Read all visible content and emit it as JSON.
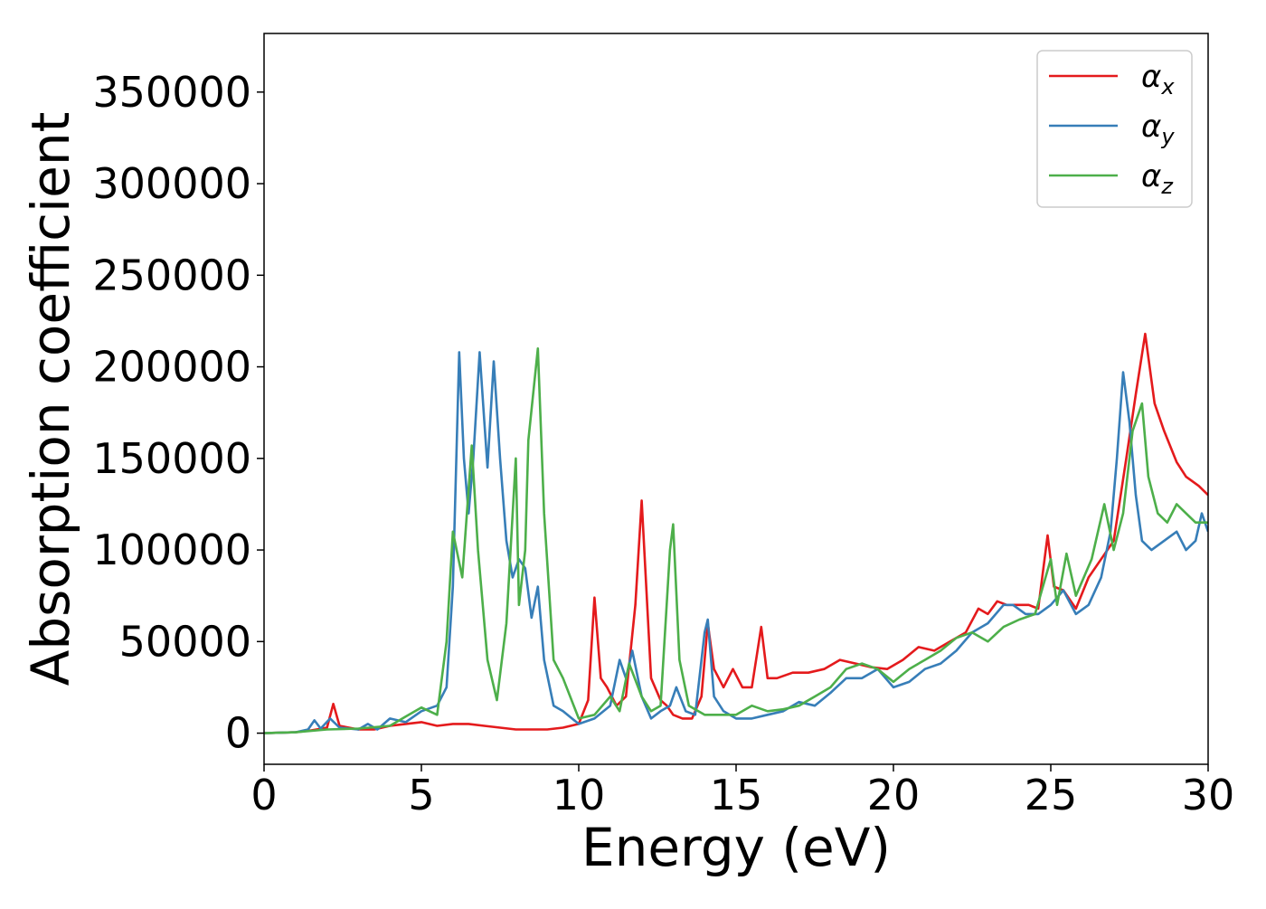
{
  "chart_data": {
    "type": "line",
    "title": "",
    "xlabel": "Energy (eV)",
    "ylabel": "Absorption coefficient",
    "xlim": [
      0,
      30
    ],
    "ylim": [
      -17000,
      382000
    ],
    "xticks": [
      0,
      5,
      10,
      15,
      20,
      25,
      30
    ],
    "xtick_labels": [
      "0",
      "5",
      "10",
      "15",
      "20",
      "25",
      "30"
    ],
    "yticks": [
      0,
      50000,
      100000,
      150000,
      200000,
      250000,
      300000,
      350000
    ],
    "ytick_labels": [
      "0",
      "50000",
      "100000",
      "150000",
      "200000",
      "250000",
      "300000",
      "350000"
    ],
    "grid": false,
    "legend_position": "top-right",
    "series": [
      {
        "name": "α_x",
        "label_main": "α",
        "label_sub": "x",
        "color": "#e41a1c",
        "x": [
          0,
          1,
          1.5,
          2.0,
          2.2,
          2.4,
          3.0,
          3.5,
          4.0,
          4.5,
          5.0,
          5.5,
          6.0,
          6.5,
          7.0,
          7.5,
          8.0,
          8.5,
          9.0,
          9.5,
          10.0,
          10.3,
          10.5,
          10.7,
          10.9,
          11.2,
          11.5,
          11.8,
          12.0,
          12.3,
          12.6,
          12.8,
          13.0,
          13.3,
          13.6,
          13.9,
          14.1,
          14.3,
          14.6,
          14.9,
          15.2,
          15.5,
          15.8,
          16.0,
          16.3,
          16.8,
          17.3,
          17.8,
          18.3,
          18.8,
          19.3,
          19.8,
          20.3,
          20.8,
          21.3,
          21.8,
          22.3,
          22.7,
          23.0,
          23.3,
          23.6,
          24.0,
          24.3,
          24.6,
          24.9,
          25.1,
          25.4,
          25.8,
          26.2,
          26.6,
          27.0,
          27.4,
          27.7,
          28.0,
          28.3,
          28.6,
          29.0,
          29.3,
          29.7,
          30.0
        ],
        "y": [
          0,
          500,
          1500,
          3000,
          16000,
          4000,
          2000,
          2000,
          4000,
          5000,
          6000,
          4000,
          5000,
          5000,
          4000,
          3000,
          2000,
          2000,
          2000,
          3000,
          5000,
          18000,
          74000,
          30000,
          25000,
          15000,
          20000,
          70000,
          127000,
          30000,
          18000,
          15000,
          10000,
          8000,
          8000,
          20000,
          60000,
          35000,
          25000,
          35000,
          25000,
          25000,
          58000,
          30000,
          30000,
          33000,
          33000,
          35000,
          40000,
          38000,
          36000,
          35000,
          40000,
          47000,
          45000,
          50000,
          55000,
          68000,
          65000,
          72000,
          70000,
          70000,
          70000,
          68000,
          108000,
          80000,
          78000,
          68000,
          85000,
          95000,
          105000,
          150000,
          185000,
          218000,
          180000,
          165000,
          148000,
          140000,
          135000,
          130000
        ]
      },
      {
        "name": "α_y",
        "label_main": "α",
        "label_sub": "y",
        "color": "#377eb8",
        "x": [
          0,
          1,
          1.4,
          1.6,
          1.8,
          2.1,
          2.4,
          3.0,
          3.3,
          3.6,
          4.0,
          4.5,
          5.0,
          5.5,
          5.8,
          6.0,
          6.2,
          6.35,
          6.5,
          6.65,
          6.85,
          7.0,
          7.1,
          7.3,
          7.5,
          7.7,
          7.9,
          8.1,
          8.3,
          8.5,
          8.7,
          8.9,
          9.2,
          9.5,
          10.0,
          10.5,
          11.0,
          11.3,
          11.5,
          11.7,
          12.0,
          12.3,
          12.6,
          12.9,
          13.1,
          13.4,
          13.7,
          14.0,
          14.1,
          14.3,
          14.6,
          15.0,
          15.5,
          16.0,
          16.5,
          17.0,
          17.5,
          18.0,
          18.5,
          19.0,
          19.5,
          20.0,
          20.5,
          21.0,
          21.5,
          22.0,
          22.5,
          23.0,
          23.5,
          23.8,
          24.2,
          24.6,
          25.0,
          25.4,
          25.8,
          26.2,
          26.6,
          26.9,
          27.1,
          27.3,
          27.5,
          27.7,
          27.9,
          28.2,
          28.6,
          29.0,
          29.3,
          29.6,
          29.8,
          30.0
        ],
        "y": [
          0,
          500,
          2000,
          7000,
          2500,
          8000,
          3000,
          2000,
          5000,
          2000,
          8000,
          6000,
          12000,
          15000,
          25000,
          80000,
          208000,
          150000,
          120000,
          150000,
          208000,
          170000,
          145000,
          203000,
          150000,
          105000,
          85000,
          95000,
          90000,
          63000,
          80000,
          40000,
          15000,
          12000,
          5000,
          8000,
          15000,
          40000,
          30000,
          45000,
          20000,
          8000,
          12000,
          15000,
          25000,
          12000,
          10000,
          55000,
          62000,
          20000,
          12000,
          8000,
          8000,
          10000,
          12000,
          17000,
          15000,
          22000,
          30000,
          30000,
          35000,
          25000,
          28000,
          35000,
          38000,
          45000,
          55000,
          60000,
          70000,
          70000,
          65000,
          65000,
          70000,
          78000,
          65000,
          70000,
          85000,
          110000,
          150000,
          197000,
          170000,
          130000,
          105000,
          100000,
          105000,
          110000,
          100000,
          105000,
          120000,
          110000
        ]
      },
      {
        "name": "α_z",
        "label_main": "α",
        "label_sub": "z",
        "color": "#4daf4a",
        "x": [
          0,
          1,
          2,
          3,
          4,
          4.5,
          5.0,
          5.5,
          5.8,
          6.0,
          6.3,
          6.6,
          6.8,
          7.1,
          7.4,
          7.7,
          8.0,
          8.1,
          8.3,
          8.4,
          8.7,
          8.9,
          9.2,
          9.5,
          10.0,
          10.5,
          11.0,
          11.3,
          11.6,
          12.0,
          12.3,
          12.6,
          12.9,
          13.0,
          13.2,
          13.5,
          14.0,
          14.5,
          15.0,
          15.5,
          16.0,
          16.5,
          17.0,
          17.5,
          18.0,
          18.5,
          19.0,
          19.5,
          20.0,
          20.5,
          21.0,
          21.5,
          22.0,
          22.5,
          23.0,
          23.5,
          24.0,
          24.5,
          25.0,
          25.2,
          25.5,
          25.8,
          26.3,
          26.7,
          27.0,
          27.3,
          27.6,
          27.9,
          28.1,
          28.4,
          28.7,
          29.0,
          29.3,
          29.6,
          30.0
        ],
        "y": [
          0,
          500,
          2000,
          2500,
          4000,
          9000,
          14000,
          10000,
          50000,
          110000,
          85000,
          157000,
          100000,
          40000,
          18000,
          60000,
          150000,
          70000,
          100000,
          160000,
          210000,
          120000,
          40000,
          30000,
          8000,
          10000,
          20000,
          12000,
          38000,
          20000,
          12000,
          15000,
          100000,
          114000,
          40000,
          15000,
          10000,
          10000,
          10000,
          15000,
          12000,
          13000,
          15000,
          20000,
          25000,
          35000,
          38000,
          35000,
          28000,
          35000,
          40000,
          45000,
          52000,
          55000,
          50000,
          58000,
          62000,
          65000,
          95000,
          70000,
          98000,
          75000,
          95000,
          125000,
          100000,
          120000,
          165000,
          180000,
          140000,
          120000,
          115000,
          125000,
          120000,
          115000,
          115000
        ]
      }
    ]
  }
}
